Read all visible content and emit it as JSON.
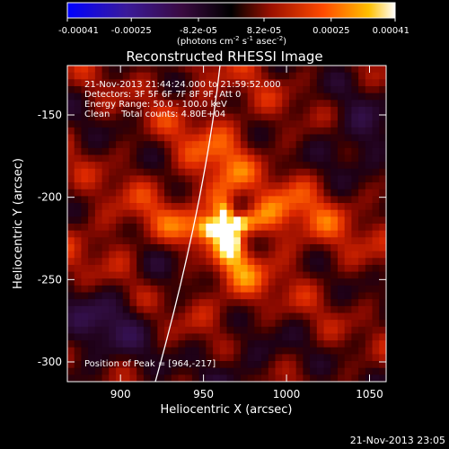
{
  "colorbar": {
    "ticks": [
      "-0.00041",
      "-0.00025",
      "-8.2e-05",
      "8.2e-05",
      "0.00025",
      "0.00041"
    ],
    "tick_values": [
      -0.00041,
      -0.00025,
      -8.2e-05,
      8.2e-05,
      0.00025,
      0.00041
    ],
    "units_base": "(photons cm",
    "units_exp1": "-2",
    "units_mid": " s",
    "units_exp2": "-1",
    "units_mid2": " asec",
    "units_exp3": "-2",
    "units_end": ")"
  },
  "info": {
    "time": "21-Nov-2013 21:44:24.000 to 21:59:52.000",
    "detectors": "Detectors: 3F 5F 6F 7F 8F 9F, Att 0",
    "energy": "Energy Range: 50.0 - 100.0 keV",
    "clean": "Clean    Total counts: 4.80E+04",
    "peak": "Position of Peak = [964,-217]"
  },
  "timestamp": "21-Nov-2013 23:05",
  "chart_data": {
    "type": "heatmap",
    "title": "Reconstructed RHESSI Image",
    "xlabel": "Heliocentric X (arcsec)",
    "ylabel": "Heliocentric Y (arcsec)",
    "xlim": [
      868,
      1060
    ],
    "ylim": [
      -312,
      -120
    ],
    "x_ticks": [
      900,
      950,
      1000,
      1050
    ],
    "y_ticks": [
      -150,
      -200,
      -250,
      -300
    ],
    "peak": [
      964,
      -217
    ],
    "colormap": "red-temperature",
    "color_range": [
      -0.00041,
      0.00041
    ]
  }
}
